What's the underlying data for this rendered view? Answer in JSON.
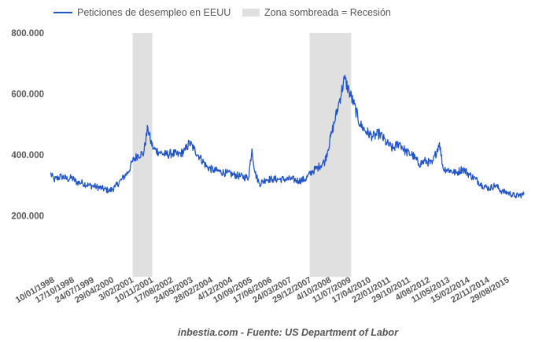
{
  "chart_data": {
    "type": "line",
    "title": "",
    "xlabel": "",
    "ylabel": "",
    "ylim": [
      0,
      800000
    ],
    "grid": false,
    "legend_placement": "top-left",
    "legend": {
      "series_label": "Peticiones de desempleo en EEUU",
      "shade_label": "Zona sombreada = Recesión"
    },
    "source": "inbestia.com - Fuente: US Department of Labor",
    "y_ticks": [
      {
        "value": 200000,
        "label": "200.000"
      },
      {
        "value": 400000,
        "label": "400.000"
      },
      {
        "value": 600000,
        "label": "600.000"
      },
      {
        "value": 800000,
        "label": "800.000"
      }
    ],
    "x_ticks": [
      "10/01/1998",
      "17/10/1998",
      "24/07/1999",
      "29/04/2000",
      "3/02/2001",
      "10/11/2001",
      "17/08/2002",
      "24/05/2003",
      "28/02/2004",
      "4/12/2004",
      "10/09/2005",
      "17/06/2006",
      "24/03/2007",
      "29/12/2007",
      "4/10/2008",
      "11/07/2009",
      "17/04/2010",
      "22/01/2011",
      "29/10/2011",
      "4/08/2012",
      "11/05/2013",
      "15/02/2014",
      "22/11/2014",
      "29/08/2015"
    ],
    "x_range": [
      "1998-01-10",
      "2016-02-01"
    ],
    "recessions": [
      {
        "start": "2001-03-01",
        "end": "2001-11-30"
      },
      {
        "start": "2007-12-01",
        "end": "2009-06-30"
      }
    ],
    "series": [
      {
        "name": "Peticiones de desempleo en EEUU",
        "color": "#2255c4",
        "points": [
          [
            "1998-01-10",
            340000
          ],
          [
            "1998-03-01",
            318000
          ],
          [
            "1998-06-15",
            330000
          ],
          [
            "1998-09-05",
            320000
          ],
          [
            "1998-11-01",
            325000
          ],
          [
            "1999-01-15",
            310000
          ],
          [
            "1999-04-01",
            308000
          ],
          [
            "1999-07-01",
            300000
          ],
          [
            "1999-10-01",
            296000
          ],
          [
            "2000-01-01",
            290000
          ],
          [
            "2000-04-15",
            282000
          ],
          [
            "2000-07-01",
            295000
          ],
          [
            "2000-10-01",
            320000
          ],
          [
            "2001-01-01",
            345000
          ],
          [
            "2001-03-01",
            380000
          ],
          [
            "2001-05-15",
            400000
          ],
          [
            "2001-08-01",
            405000
          ],
          [
            "2001-09-29",
            490000
          ],
          [
            "2001-11-01",
            450000
          ],
          [
            "2001-12-15",
            420000
          ],
          [
            "2002-03-01",
            410000
          ],
          [
            "2002-06-01",
            400000
          ],
          [
            "2002-09-01",
            405000
          ],
          [
            "2002-12-01",
            400000
          ],
          [
            "2003-03-01",
            415000
          ],
          [
            "2003-05-01",
            440000
          ],
          [
            "2003-07-01",
            420000
          ],
          [
            "2003-10-01",
            390000
          ],
          [
            "2004-01-01",
            360000
          ],
          [
            "2004-04-01",
            350000
          ],
          [
            "2004-07-01",
            345000
          ],
          [
            "2004-10-01",
            340000
          ],
          [
            "2005-01-01",
            335000
          ],
          [
            "2005-04-01",
            330000
          ],
          [
            "2005-08-01",
            325000
          ],
          [
            "2005-09-17",
            420000
          ],
          [
            "2005-11-01",
            340000
          ],
          [
            "2006-01-01",
            305000
          ],
          [
            "2006-04-01",
            320000
          ],
          [
            "2006-07-01",
            320000
          ],
          [
            "2006-10-01",
            320000
          ],
          [
            "2007-01-01",
            320000
          ],
          [
            "2007-04-01",
            320000
          ],
          [
            "2007-07-01",
            315000
          ],
          [
            "2007-10-01",
            320000
          ],
          [
            "2008-01-01",
            345000
          ],
          [
            "2008-04-01",
            360000
          ],
          [
            "2008-07-01",
            380000
          ],
          [
            "2008-10-01",
            470000
          ],
          [
            "2009-01-01",
            560000
          ],
          [
            "2009-03-28",
            650000
          ],
          [
            "2009-06-01",
            610000
          ],
          [
            "2009-08-01",
            570000
          ],
          [
            "2009-11-01",
            500000
          ],
          [
            "2010-02-01",
            475000
          ],
          [
            "2010-05-01",
            460000
          ],
          [
            "2010-08-01",
            470000
          ],
          [
            "2010-11-01",
            440000
          ],
          [
            "2011-02-01",
            420000
          ],
          [
            "2011-05-01",
            440000
          ],
          [
            "2011-08-01",
            410000
          ],
          [
            "2011-11-01",
            400000
          ],
          [
            "2012-02-01",
            370000
          ],
          [
            "2012-05-01",
            380000
          ],
          [
            "2012-08-01",
            370000
          ],
          [
            "2012-11-10",
            440000
          ],
          [
            "2013-01-01",
            355000
          ],
          [
            "2013-04-01",
            350000
          ],
          [
            "2013-07-01",
            340000
          ],
          [
            "2013-10-01",
            355000
          ],
          [
            "2014-01-01",
            335000
          ],
          [
            "2014-04-01",
            320000
          ],
          [
            "2014-07-01",
            300000
          ],
          [
            "2014-10-01",
            290000
          ],
          [
            "2015-01-01",
            300000
          ],
          [
            "2015-04-01",
            280000
          ],
          [
            "2015-07-01",
            275000
          ],
          [
            "2015-10-01",
            265000
          ],
          [
            "2016-02-01",
            270000
          ]
        ]
      }
    ]
  }
}
